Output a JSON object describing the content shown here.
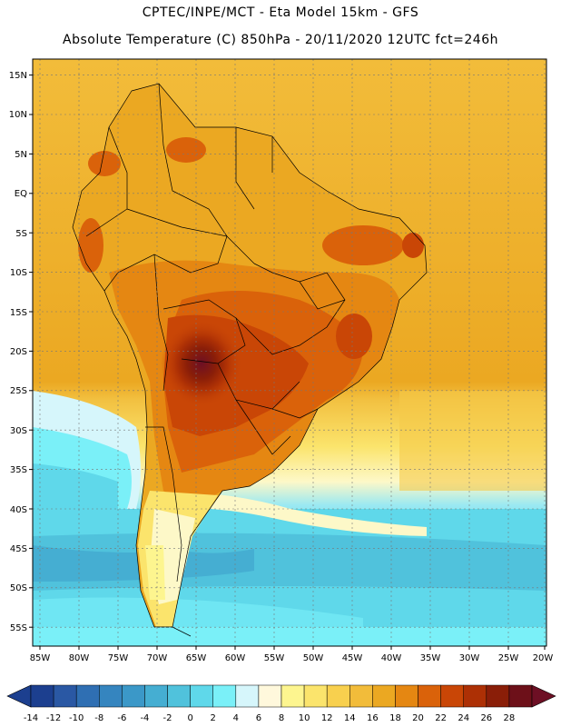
{
  "header": {
    "line1": "CPTEC/INPE/MCT -  Eta Model 15km - GFS",
    "line2": "Absolute Temperature (C) 850hPa - 20/11/2020 12UTC fct=246h"
  },
  "map": {
    "lat_labels": [
      "15N",
      "10N",
      "5N",
      "EQ",
      "5S",
      "10S",
      "15S",
      "20S",
      "25S",
      "30S",
      "35S",
      "40S",
      "45S",
      "50S",
      "55S"
    ],
    "lon_labels": [
      "85W",
      "80W",
      "75W",
      "70W",
      "65W",
      "60W",
      "55W",
      "50W",
      "45W",
      "40W",
      "35W",
      "30W",
      "25W",
      "20W"
    ]
  },
  "colorbar": {
    "labels": [
      "-14",
      "-12",
      "-10",
      "-8",
      "-6",
      "-4",
      "-2",
      "0",
      "2",
      "4",
      "6",
      "8",
      "10",
      "12",
      "14",
      "16",
      "18",
      "20",
      "22",
      "24",
      "26",
      "28"
    ],
    "colors": [
      "#1c3f8f",
      "#2a58a4",
      "#2f6fb3",
      "#3585bf",
      "#3b98c8",
      "#45aed2",
      "#50c2dc",
      "#5fd8ea",
      "#7af0f8",
      "#d6f6fb",
      "#fff8dc",
      "#fdf58f",
      "#fbe46c",
      "#f8d04e",
      "#f2bc3a",
      "#eba822",
      "#e58712",
      "#da620a",
      "#c94606",
      "#ad3005",
      "#8a1e08",
      "#6d1019"
    ],
    "under_color": "#1c3f8f",
    "over_color": "#6d0f24"
  }
}
